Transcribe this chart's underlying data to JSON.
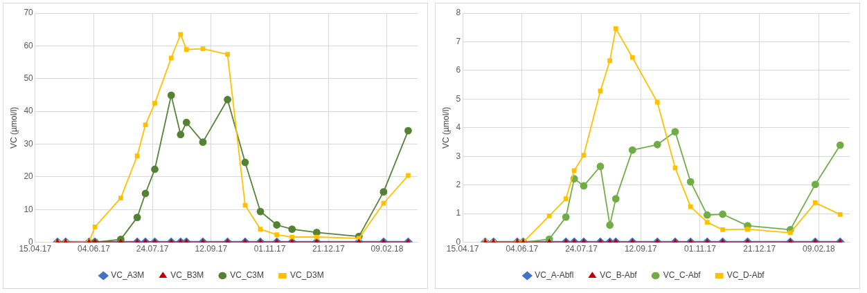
{
  "chart_data": [
    {
      "type": "line",
      "ylabel": "VC (µmol/l)",
      "x": [
        "2017-05-04",
        "2017-05-11",
        "2017-05-31",
        "2017-06-05",
        "2017-06-27",
        "2017-07-11",
        "2017-07-18",
        "2017-07-26",
        "2017-08-09",
        "2017-08-17",
        "2017-08-22",
        "2017-09-05",
        "2017-09-26",
        "2017-10-11",
        "2017-10-24",
        "2017-11-07",
        "2017-11-20",
        "2017-12-11",
        "2018-01-16",
        "2018-02-06",
        "2018-02-27"
      ],
      "series": [
        {
          "name": "VC_A3M",
          "color": "#4472c4",
          "marker": "diamond",
          "values": [
            0,
            0,
            0,
            0,
            0,
            0,
            0,
            0,
            0,
            0,
            0,
            0,
            0,
            0,
            0,
            0,
            0,
            0,
            0,
            0,
            0
          ]
        },
        {
          "name": "VC_B3M",
          "color": "#c00000",
          "marker": "triangle",
          "values": [
            0,
            0,
            0,
            0,
            0,
            0,
            0,
            0,
            0,
            0,
            0,
            0,
            0,
            0,
            0,
            0,
            0,
            0,
            0,
            0,
            0
          ]
        },
        {
          "name": "VC_C3M",
          "color": "#548235",
          "marker": "circle",
          "values": [
            null,
            null,
            null,
            0,
            0.9,
            7.6,
            14.9,
            22.3,
            44.9,
            32.9,
            36.6,
            30.6,
            43.6,
            24.4,
            9.4,
            5.3,
            4.0,
            3.0,
            1.8,
            15.4,
            34.1
          ]
        },
        {
          "name": "VC_D3M",
          "color": "#ffc000",
          "marker": "square",
          "values": [
            0,
            0,
            0.2,
            4.7,
            13.5,
            26.4,
            35.9,
            42.5,
            56.3,
            63.5,
            58.9,
            59.1,
            57.4,
            11.3,
            4.0,
            2.3,
            1.6,
            1.6,
            1.2,
            11.9,
            20.4
          ]
        }
      ],
      "xlim": [
        "2017-04-15",
        "2018-03-07"
      ],
      "xticks": [
        {
          "value": "2017-04-15",
          "label": "15.04.17"
        },
        {
          "value": "2017-06-04",
          "label": "04.06.17"
        },
        {
          "value": "2017-07-24",
          "label": "24.07.17"
        },
        {
          "value": "2017-09-12",
          "label": "12.09.17"
        },
        {
          "value": "2017-11-01",
          "label": "01.11.17"
        },
        {
          "value": "2017-12-21",
          "label": "21.12.17"
        },
        {
          "value": "2018-02-09",
          "label": "09.02.18"
        }
      ],
      "ylim": [
        0,
        70
      ],
      "yticks": [
        0,
        10,
        20,
        30,
        40,
        50,
        60,
        70
      ],
      "grid": true,
      "legend": "bottom",
      "line_style": "solid"
    },
    {
      "type": "line",
      "ylabel": "VC (µmol/l)",
      "x": [
        "2017-05-04",
        "2017-05-11",
        "2017-05-31",
        "2017-06-05",
        "2017-06-27",
        "2017-07-11",
        "2017-07-18",
        "2017-07-26",
        "2017-08-09",
        "2017-08-17",
        "2017-08-22",
        "2017-09-05",
        "2017-09-26",
        "2017-10-11",
        "2017-10-24",
        "2017-11-07",
        "2017-11-20",
        "2017-12-11",
        "2018-01-16",
        "2018-02-06",
        "2018-02-27"
      ],
      "series": [
        {
          "name": "VC_A-Abfl",
          "color": "#4472c4",
          "marker": "diamond",
          "values": [
            0,
            0,
            0,
            0,
            0,
            0,
            0,
            0,
            0,
            0,
            0,
            0,
            0,
            0,
            0,
            0,
            0,
            0,
            0,
            0,
            0
          ]
        },
        {
          "name": "VC_B-Abf",
          "color": "#c00000",
          "marker": "triangle",
          "values": [
            0,
            0,
            0,
            0,
            0,
            0,
            0,
            0,
            0,
            0,
            0,
            0,
            0,
            0,
            0,
            0,
            0,
            0,
            0,
            0,
            0
          ]
        },
        {
          "name": "VC_C-Abf",
          "color": "#70ad47",
          "marker": "circle",
          "values": [
            null,
            null,
            null,
            0,
            0.11,
            0.88,
            2.22,
            1.97,
            2.65,
            0.6,
            1.52,
            3.22,
            3.41,
            3.86,
            2.11,
            0.95,
            0.98,
            0.58,
            0.44,
            2.02,
            3.39
          ]
        },
        {
          "name": "VC_D-Abf",
          "color": "#ffc000",
          "marker": "square",
          "values": [
            0.02,
            0,
            0,
            0,
            0.92,
            1.52,
            2.5,
            3.04,
            5.28,
            6.34,
            7.46,
            6.45,
            4.89,
            2.6,
            1.24,
            0.7,
            0.44,
            0.46,
            0.33,
            1.38,
            0.97
          ]
        }
      ],
      "xlim": [
        "2017-04-15",
        "2018-03-07"
      ],
      "xticks": [
        {
          "value": "2017-04-15",
          "label": "15.04.17"
        },
        {
          "value": "2017-06-04",
          "label": "04.06.17"
        },
        {
          "value": "2017-07-24",
          "label": "24.07.17"
        },
        {
          "value": "2017-09-12",
          "label": "12.09.17"
        },
        {
          "value": "2017-11-01",
          "label": "01.11.17"
        },
        {
          "value": "2017-12-21",
          "label": "21.12.17"
        },
        {
          "value": "2018-02-09",
          "label": "09.02.18"
        }
      ],
      "ylim": [
        0,
        8
      ],
      "yticks": [
        0,
        1,
        2,
        3,
        4,
        5,
        6,
        7,
        8
      ],
      "grid": true,
      "legend": "bottom",
      "line_style": "solid"
    }
  ]
}
